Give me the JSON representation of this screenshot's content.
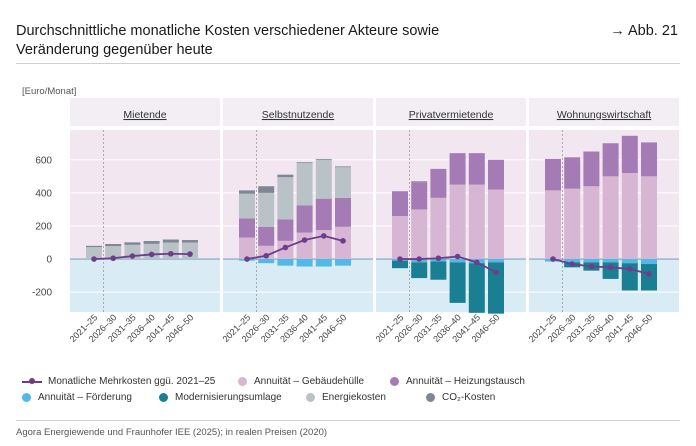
{
  "header": {
    "title_line1": "Durchschnittliche monatliche Kosten verschiedener Akteure sowie",
    "title_line2": "Veränderung gegenüber heute",
    "figure_ref": "→ Abb. 21"
  },
  "footer": {
    "source": "Agora Energiewende und Fraunhofer IEE (2025); in realen Preisen (2020)"
  },
  "colors": {
    "panel_bg_positive": "#f2e7f0",
    "panel_bg_negative": "#d9ebf4",
    "zero_line": "#7aa7c2",
    "gridline": "#ffffff",
    "dashed_line": "#9a9a9a"
  },
  "chart_data": {
    "type": "bar",
    "stacked": true,
    "ylabel": "[Euro/Monat]",
    "ylim": [
      -320,
      780
    ],
    "yticks": [
      -200,
      0,
      200,
      400,
      600
    ],
    "ytick_labels": [
      "-200",
      "0",
      "200",
      "400",
      "600"
    ],
    "categories": [
      "2021–25",
      "2026–30",
      "2031–35",
      "2036–40",
      "2041–45",
      "2046–50"
    ],
    "series_meta": [
      {
        "key": "gebaeudehuelle",
        "name": "Annuität – Gebäudehülle",
        "color": "#d7b6d3"
      },
      {
        "key": "heizungstausch",
        "name": "Annuität – Heizungstausch",
        "color": "#a57bb6"
      },
      {
        "key": "energiekosten",
        "name": "Energiekosten",
        "color": "#b9c2c7"
      },
      {
        "key": "co2",
        "name": "CO₂-Kosten",
        "color": "#7e8795"
      },
      {
        "key": "foerderung",
        "name": "Annuität – Förderung",
        "color": "#4fb9e8"
      },
      {
        "key": "modernisierung",
        "name": "Modernisierungsumlage",
        "color": "#1b7f94"
      }
    ],
    "line_series": {
      "name": "Monatliche Mehrkosten ggü. 2021–25",
      "color": "#6e3d8c"
    },
    "panels": [
      {
        "title": "Mietende",
        "series": {
          "gebaeudehuelle": [
            0,
            0,
            0,
            0,
            0,
            0
          ],
          "heizungstausch": [
            0,
            0,
            0,
            0,
            0,
            0
          ],
          "energiekosten": [
            72,
            78,
            86,
            92,
            100,
            100
          ],
          "co2": [
            8,
            13,
            15,
            17,
            18,
            15
          ],
          "foerderung": [
            0,
            0,
            0,
            0,
            0,
            0
          ],
          "modernisierung": [
            0,
            0,
            0,
            0,
            0,
            0
          ]
        },
        "line": [
          0,
          5,
          18,
          28,
          32,
          30
        ]
      },
      {
        "title": "Selbstnutzende",
        "series": {
          "gebaeudehuelle": [
            130,
            80,
            110,
            160,
            175,
            195
          ],
          "heizungstausch": [
            115,
            115,
            130,
            165,
            190,
            175
          ],
          "energiekosten": [
            150,
            205,
            255,
            255,
            235,
            185
          ],
          "co2": [
            20,
            40,
            15,
            5,
            5,
            5
          ],
          "foerderung": [
            -10,
            -25,
            -40,
            -45,
            -45,
            -40
          ],
          "modernisierung": [
            0,
            0,
            0,
            0,
            0,
            0
          ]
        },
        "line": [
          0,
          20,
          70,
          115,
          140,
          110
        ]
      },
      {
        "title": "Privatvermietende",
        "series": {
          "gebaeudehuelle": [
            260,
            300,
            370,
            450,
            450,
            420
          ],
          "heizungstausch": [
            150,
            165,
            175,
            190,
            190,
            180
          ],
          "energiekosten": [
            0,
            0,
            0,
            0,
            0,
            0
          ],
          "co2": [
            0,
            5,
            0,
            0,
            0,
            0
          ],
          "foerderung": [
            -10,
            -20,
            -15,
            -20,
            -25,
            -20
          ],
          "modernisierung": [
            -45,
            -95,
            -110,
            -245,
            -300,
            -310
          ]
        },
        "line": [
          0,
          0,
          5,
          15,
          -20,
          -80
        ]
      },
      {
        "title": "Wohnungswirtschaft",
        "series": {
          "gebaeudehuelle": [
            415,
            425,
            440,
            500,
            520,
            500
          ],
          "heizungstausch": [
            190,
            190,
            210,
            200,
            225,
            205
          ],
          "energiekosten": [
            0,
            0,
            0,
            0,
            0,
            0
          ],
          "co2": [
            0,
            0,
            0,
            0,
            0,
            0
          ],
          "foerderung": [
            -15,
            -20,
            -20,
            -20,
            -25,
            -30
          ],
          "modernisierung": [
            0,
            -30,
            -50,
            -100,
            -165,
            -160
          ]
        },
        "line": [
          0,
          -30,
          -45,
          -50,
          -60,
          -90
        ]
      }
    ]
  }
}
